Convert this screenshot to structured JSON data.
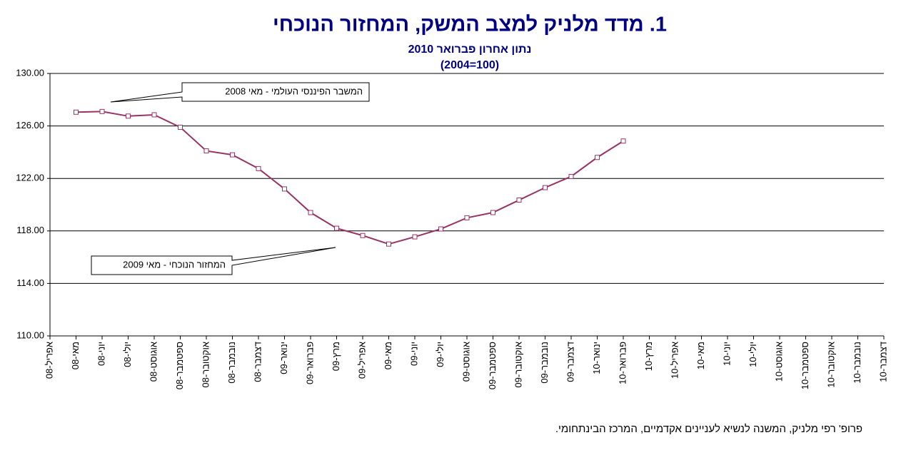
{
  "chart_data": {
    "type": "line",
    "title": "1.  מדד מלניק למצב המשק, המחזור הנוכחי",
    "subtitle": [
      "נתון אחרון פברואר 2010",
      "(2004=100)"
    ],
    "categories": [
      "אפריל-08",
      "מאי-08",
      "יוני-08",
      "יולי-08",
      "אוגוסט-08",
      "ספטמבר-08",
      "אוקטובר-08",
      "נובמבר-08",
      "דצמבר-08",
      "ינואר-09",
      "פברואר-09",
      "מרץ-09",
      "אפריל-09",
      "מאי-09",
      "יוני-09",
      "יולי-09",
      "אוגוסט-09",
      "ספטמבר-09",
      "אוקטובר-09",
      "נובמבר-09",
      "דצמבר-09",
      "ינואר-10",
      "פברואר-10",
      "מרץ-10",
      "אפריל-10",
      "מאי-10",
      "יוני-10",
      "יולי-10",
      "אוגוסט-10",
      "ספטמבר-10",
      "אוקטובר-10",
      "נובמבר-10",
      "דצמבר-10"
    ],
    "series": [
      {
        "color": "#993366",
        "values": [
          null,
          127.05,
          127.1,
          126.75,
          126.85,
          125.9,
          124.1,
          123.8,
          122.75,
          121.2,
          119.4,
          118.2,
          117.65,
          117.0,
          117.55,
          118.15,
          119.0,
          119.4,
          120.35,
          121.3,
          122.15,
          123.6,
          124.85,
          null,
          null,
          null,
          null,
          null,
          null,
          null,
          null,
          null,
          null
        ]
      }
    ],
    "ylim": [
      110,
      130
    ],
    "yticks": [
      {
        "value": 110,
        "label": "110.00"
      },
      {
        "value": 114,
        "label": "114.00"
      },
      {
        "value": 118,
        "label": "118.00"
      },
      {
        "value": 122,
        "label": "122.00"
      },
      {
        "value": 126,
        "label": "126.00"
      },
      {
        "value": 130,
        "label": "130.00"
      }
    ],
    "grid": true,
    "annotations": [
      "המשבר הפיננסי העולמי  - מאי 2008",
      "המחזור הנוכחי - מאי 2009"
    ],
    "footer": "פרופ' רפי מלניק, המשנה לנשיא לעניינים אקדמיים, המרכז הבינתחומי."
  }
}
